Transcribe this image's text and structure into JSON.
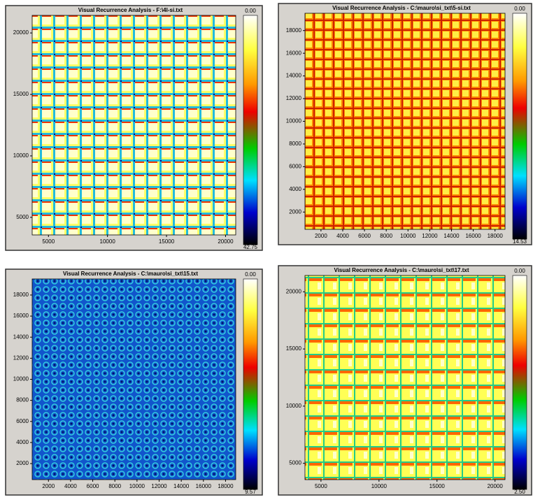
{
  "panels": [
    {
      "title": "Visual Recurrence Analysis - F:\\4l-si.txt",
      "y_ticks": [
        "20000",
        "15000",
        "10000",
        "5000"
      ],
      "x_ticks": [
        "5000",
        "10000",
        "15000",
        "20000"
      ],
      "scale_top": "0.00",
      "scale_bottom": "42.75"
    },
    {
      "title": "Visual Recurrence Analysis - C:\\mauro\\si_txt\\5-si.txt",
      "y_ticks": [
        "18000",
        "16000",
        "14000",
        "12000",
        "10000",
        "8000",
        "6000",
        "4000",
        "2000"
      ],
      "x_ticks": [
        "2000",
        "4000",
        "6000",
        "8000",
        "10000",
        "12000",
        "14000",
        "16000",
        "18000"
      ],
      "scale_top": "0.00",
      "scale_bottom": "14.53"
    },
    {
      "title": "Visual Recurrence Analysis - C:\\mauro\\si_txt\\15.txt",
      "y_ticks": [
        "18000",
        "16000",
        "14000",
        "12000",
        "10000",
        "8000",
        "6000",
        "4000",
        "2000"
      ],
      "x_ticks": [
        "2000",
        "4000",
        "6000",
        "8000",
        "10000",
        "12000",
        "14000",
        "16000",
        "18000"
      ],
      "scale_top": "0.00",
      "scale_bottom": "9.57"
    },
    {
      "title": "Visual Recurrence Analysis - C:\\mauro\\si_txt\\17.txt",
      "y_ticks": [
        "20000",
        "15000",
        "10000",
        "5000"
      ],
      "x_ticks": [
        "5000",
        "10000",
        "15000",
        "20000"
      ],
      "scale_top": "0.00",
      "scale_bottom": "2.50"
    }
  ]
}
